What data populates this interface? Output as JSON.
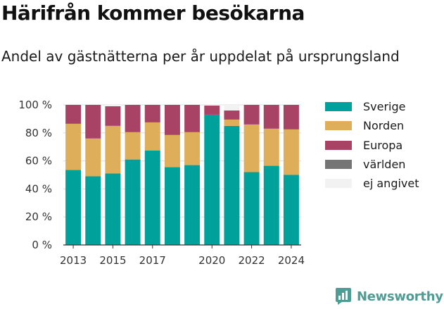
{
  "header": {
    "title": "Härifrån kommer besökarna",
    "subtitle": "Andel av gästnätterna per år uppdelat på ursprungsland"
  },
  "brand": {
    "name": "Newsworthy",
    "color": "#4e9c93"
  },
  "chart_data": {
    "type": "bar",
    "stacked": true,
    "categories": [
      "2013",
      "2014",
      "2015",
      "2016",
      "2017",
      "2018",
      "2019",
      "2020",
      "2021",
      "2022",
      "2023",
      "2024"
    ],
    "x_tick_labels": [
      "2013",
      "",
      "2015",
      "",
      "2017",
      "",
      "",
      "2020",
      "",
      "2022",
      "",
      "2024"
    ],
    "series": [
      {
        "name": "Sverige",
        "color": "#00a19a",
        "values": [
          53.5,
          49,
          51,
          61,
          67.5,
          55.5,
          57,
          93,
          85,
          52,
          56.5,
          50
        ]
      },
      {
        "name": "Norden",
        "color": "#dfae5a",
        "values": [
          33,
          27,
          34,
          19.5,
          20,
          23,
          23.5,
          0,
          4.5,
          34,
          26.5,
          32.5
        ]
      },
      {
        "name": "Europa",
        "color": "#a94366",
        "values": [
          13.5,
          24,
          14,
          19.5,
          12.5,
          21.5,
          19.5,
          6.5,
          6.5,
          14,
          17,
          17.5
        ]
      },
      {
        "name": "världen",
        "color": "#767575",
        "values": [
          0,
          0,
          0,
          0,
          0,
          0,
          0,
          0,
          0,
          0,
          0,
          0
        ]
      },
      {
        "name": "ej angivet",
        "color": "#f2f2f2",
        "values": [
          0,
          0,
          1,
          0,
          0,
          0,
          0,
          0.5,
          4,
          0,
          0,
          0
        ]
      }
    ],
    "yaxis": {
      "ylim": [
        0,
        100
      ],
      "ticks": [
        0,
        20,
        40,
        60,
        80,
        100
      ],
      "tick_labels": [
        "0 %",
        "20 %",
        "40 %",
        "60 %",
        "80 %",
        "100 %"
      ]
    },
    "grid": true,
    "legend_placement": "right"
  }
}
